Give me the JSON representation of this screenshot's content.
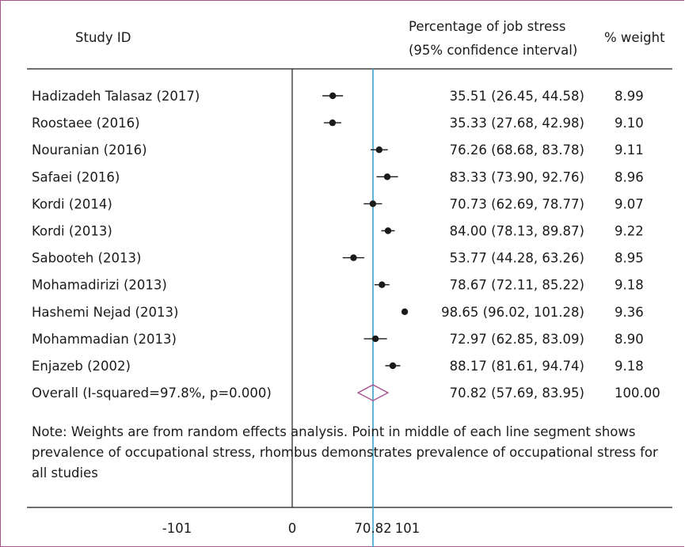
{
  "headers": {
    "study": "Study ID",
    "estimate_line1": "Percentage of job stress",
    "estimate_line2": "(95% confidence interval)",
    "weight": "% weight"
  },
  "note": "Note: Weights are from random effects analysis. Point in middle of each line segment shows prevalence of occupational stress, rhombus demonstrates prevalence of occupational stress for all studies",
  "colors": {
    "frame": "#a8528f",
    "reference_line": "#3aa7c9",
    "diamond": "#a8528f",
    "marker": "#1a1a1a"
  },
  "chart_data": {
    "type": "forest",
    "x_ticks": [
      "-101",
      "0",
      "70.82",
      "101"
    ],
    "x_tick_values": [
      -101,
      0,
      70.82,
      101
    ],
    "xlim": [
      -140,
      140
    ],
    "null_line": 0,
    "pooled_line": 70.82,
    "studies": [
      {
        "name": "Hadizadeh Talasaz (2017)",
        "estimate": 35.51,
        "lower": 26.45,
        "upper": 44.58,
        "ci_text": "35.51 (26.45, 44.58)",
        "weight": "8.99"
      },
      {
        "name": "Roostaee (2016)",
        "estimate": 35.33,
        "lower": 27.68,
        "upper": 42.98,
        "ci_text": "35.33 (27.68, 42.98)",
        "weight": "9.10"
      },
      {
        "name": "Nouranian (2016)",
        "estimate": 76.26,
        "lower": 68.68,
        "upper": 83.78,
        "ci_text": "76.26 (68.68, 83.78)",
        "weight": "9.11"
      },
      {
        "name": "Safaei (2016)",
        "estimate": 83.33,
        "lower": 73.9,
        "upper": 92.76,
        "ci_text": "83.33 (73.90, 92.76)",
        "weight": "8.96"
      },
      {
        "name": "Kordi (2014)",
        "estimate": 70.73,
        "lower": 62.69,
        "upper": 78.77,
        "ci_text": "70.73 (62.69, 78.77)",
        "weight": "9.07"
      },
      {
        "name": "Kordi (2013)",
        "estimate": 84.0,
        "lower": 78.13,
        "upper": 89.87,
        "ci_text": "84.00 (78.13, 89.87)",
        "weight": "9.22"
      },
      {
        "name": "Sabooteh (2013)",
        "estimate": 53.77,
        "lower": 44.28,
        "upper": 63.26,
        "ci_text": "53.77 (44.28, 63.26)",
        "weight": "8.95"
      },
      {
        "name": "Mohamadirizi (2013)",
        "estimate": 78.67,
        "lower": 72.11,
        "upper": 85.22,
        "ci_text": "78.67 (72.11, 85.22)",
        "weight": "9.18"
      },
      {
        "name": "Hashemi Nejad (2013)",
        "estimate": 98.65,
        "lower": 96.02,
        "upper": 101.28,
        "ci_text": "98.65 (96.02, 101.28)",
        "weight": "9.36"
      },
      {
        "name": "Mohammadian (2013)",
        "estimate": 72.97,
        "lower": 62.85,
        "upper": 83.09,
        "ci_text": "72.97 (62.85, 83.09)",
        "weight": "8.90"
      },
      {
        "name": "Enjazeb (2002)",
        "estimate": 88.17,
        "lower": 81.61,
        "upper": 94.74,
        "ci_text": "88.17 (81.61, 94.74)",
        "weight": "9.18"
      }
    ],
    "overall": {
      "name": "Overall (I-squared=97.8%, p=0.000)",
      "estimate": 70.82,
      "lower": 57.69,
      "upper": 83.95,
      "ci_text": "70.82 (57.69, 83.95)",
      "weight": "100.00"
    }
  }
}
